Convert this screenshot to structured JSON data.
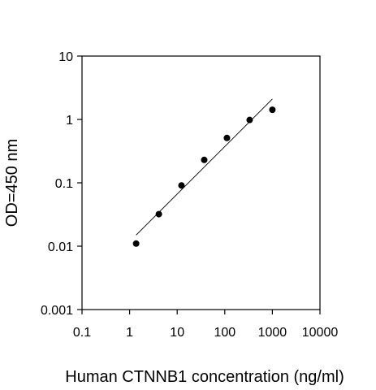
{
  "chart_data": {
    "type": "scatter",
    "title": "",
    "xlabel": "Human CTNNB1 concentration (ng/ml)",
    "ylabel": "OD=450 nm",
    "x_scale": "log",
    "y_scale": "log",
    "xlim": [
      0.1,
      10000
    ],
    "ylim": [
      0.001,
      10
    ],
    "x_ticks": [
      0.1,
      1,
      10,
      100,
      1000,
      10000
    ],
    "x_tick_labels": [
      "0.1",
      "1",
      "10",
      "100",
      "1000",
      "10000"
    ],
    "y_ticks": [
      0.001,
      0.01,
      0.1,
      1,
      10
    ],
    "y_tick_labels": [
      "0.001",
      "0.01",
      "0.1",
      "1",
      "10"
    ],
    "grid": false,
    "legend": "none",
    "colors": {
      "points": "#000000",
      "axes": "#000000",
      "fit_line": "#000000"
    },
    "series": [
      {
        "x": [
          1.37,
          4.12,
          12.3,
          37.0,
          111,
          333,
          1000
        ],
        "y": [
          0.011,
          0.032,
          0.091,
          0.23,
          0.51,
          0.98,
          1.42
        ]
      }
    ],
    "fit_line": {
      "x": [
        1.37,
        1000
      ],
      "y": [
        0.015,
        2.1
      ]
    }
  }
}
